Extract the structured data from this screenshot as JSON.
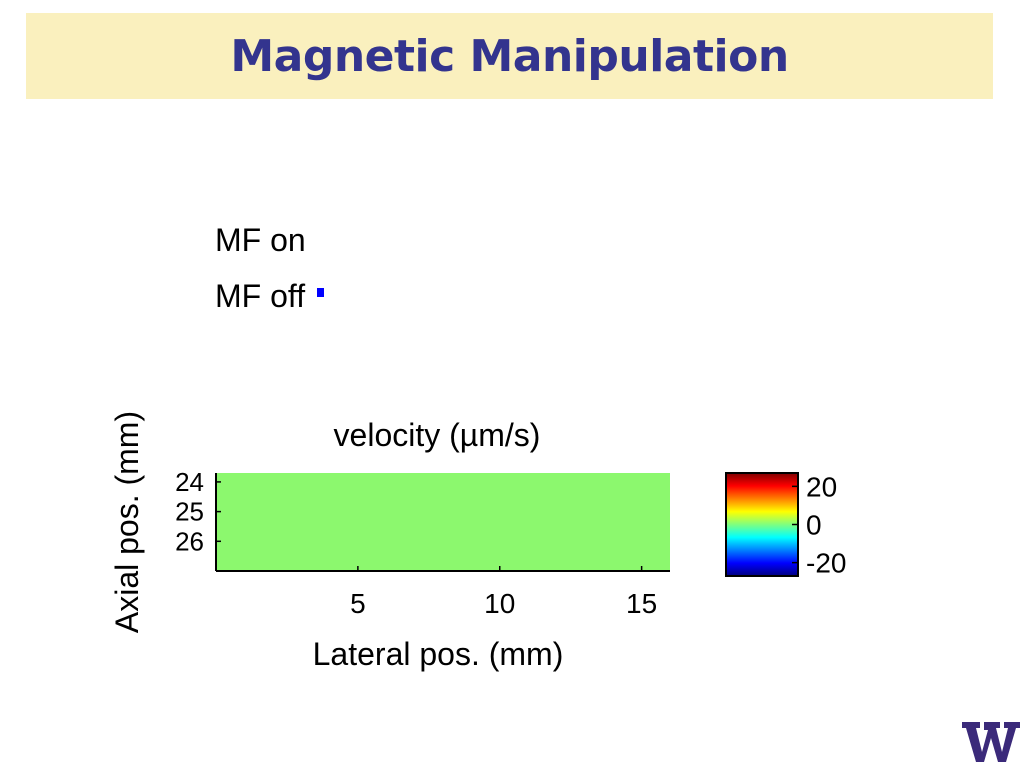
{
  "slide": {
    "title": "Magnetic Manipulation"
  },
  "legend": {
    "items": [
      {
        "label": "MF on",
        "marker_color": ""
      },
      {
        "label": "MF off",
        "marker_color": "#0000ff"
      }
    ]
  },
  "logo": {
    "letter": "W",
    "color": "#3b2a7a"
  },
  "colors": {
    "title_text": "#33348e",
    "title_band": "#faf0be",
    "heatmap_fill": "#8cf86e"
  },
  "chart_data": {
    "type": "heatmap",
    "title": "velocity (µm/s)",
    "xlabel": "Lateral pos. (mm)",
    "ylabel": "Axial pos. (mm)",
    "xlim": [
      0,
      16
    ],
    "ylim": [
      23.7,
      27
    ],
    "y_inverted": true,
    "x_ticks": [
      5,
      10,
      15
    ],
    "y_ticks": [
      24,
      25,
      26
    ],
    "uniform_value": 0,
    "colorbar": {
      "colormap": "jet",
      "range": [
        -27,
        27
      ],
      "ticks": [
        20,
        0,
        -20
      ],
      "tick_labels": [
        "20",
        "0",
        "-20"
      ]
    }
  }
}
